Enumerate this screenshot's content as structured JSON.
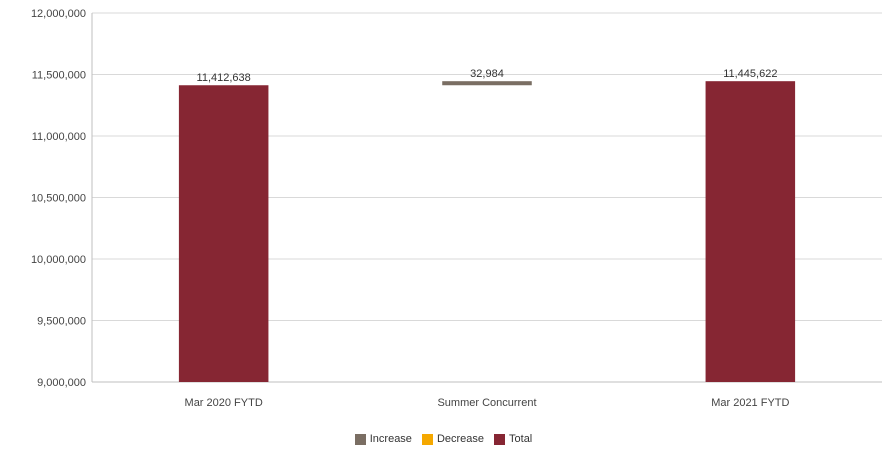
{
  "chart_data": {
    "type": "waterfall",
    "categories": [
      "Mar 2020 FYTD",
      "Summer Concurrent",
      "Mar 2021 FYTD"
    ],
    "points": [
      {
        "category": "Mar 2020 FYTD",
        "kind": "total",
        "value": 11412638,
        "label": "11,412,638"
      },
      {
        "category": "Summer Concurrent",
        "kind": "increase",
        "value": 32984,
        "label": "32,984"
      },
      {
        "category": "Mar 2021 FYTD",
        "kind": "total",
        "value": 11445622,
        "label": "11,445,622"
      }
    ],
    "ylim": [
      9000000,
      12000000
    ],
    "yticks": [
      9000000,
      9500000,
      10000000,
      10500000,
      11000000,
      11500000,
      12000000
    ],
    "ytick_labels": [
      "9,000,000",
      "9,500,000",
      "10,000,000",
      "10,500,000",
      "11,000,000",
      "11,500,000",
      "12,000,000"
    ],
    "grid": true,
    "legend": {
      "placement": "bottom",
      "items": [
        {
          "label": "Increase",
          "color": "#7a6e63"
        },
        {
          "label": "Decrease",
          "color": "#f5a800"
        },
        {
          "label": "Total",
          "color": "#862633"
        }
      ]
    },
    "title": "",
    "xlabel": "",
    "ylabel": ""
  }
}
